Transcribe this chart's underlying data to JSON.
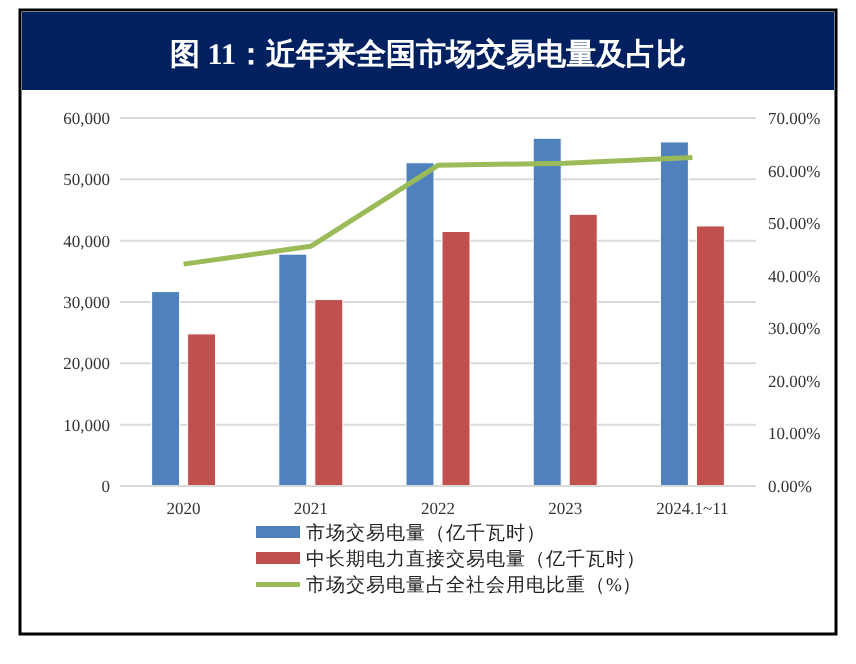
{
  "chart_data": {
    "type": "bar",
    "title": "图 11：近年来全国市场交易电量及占比",
    "categories": [
      "2020",
      "2021",
      "2022",
      "2023",
      "2024.1~11"
    ],
    "series": [
      {
        "name": "市场交易电量（亿千瓦时）",
        "color": "#4f81bd",
        "values": [
          31700,
          37800,
          52700,
          56700,
          56100
        ]
      },
      {
        "name": "中长期电力直接交易电量（亿千瓦时）",
        "color": "#c0504d",
        "values": [
          24800,
          30400,
          41500,
          44300,
          42400
        ]
      },
      {
        "name": "市场交易电量占全社会用电比重（%）",
        "color": "#9bbb59",
        "type": "line",
        "axis": "y2",
        "values": [
          42.2,
          45.6,
          61.0,
          61.4,
          62.5
        ]
      }
    ],
    "ylim": [
      0,
      60000
    ],
    "yticks": [
      {
        "value": 0,
        "label": "0"
      },
      {
        "value": 10000,
        "label": "10,000"
      },
      {
        "value": 20000,
        "label": "20,000"
      },
      {
        "value": 30000,
        "label": "30,000"
      },
      {
        "value": 40000,
        "label": "40,000"
      },
      {
        "value": 50000,
        "label": "50,000"
      },
      {
        "value": 60000,
        "label": "60,000"
      }
    ],
    "y2lim": [
      0,
      70
    ],
    "y2ticks": [
      {
        "value": 0,
        "label": "0.00%"
      },
      {
        "value": 10,
        "label": "10.00%"
      },
      {
        "value": 20,
        "label": "20.00%"
      },
      {
        "value": 30,
        "label": "30.00%"
      },
      {
        "value": 40,
        "label": "40.00%"
      },
      {
        "value": 50,
        "label": "50.00%"
      },
      {
        "value": 60,
        "label": "60.00%"
      },
      {
        "value": 70,
        "label": "70.00%"
      }
    ],
    "grid": "y",
    "legend": "bottom",
    "marker": "none"
  }
}
